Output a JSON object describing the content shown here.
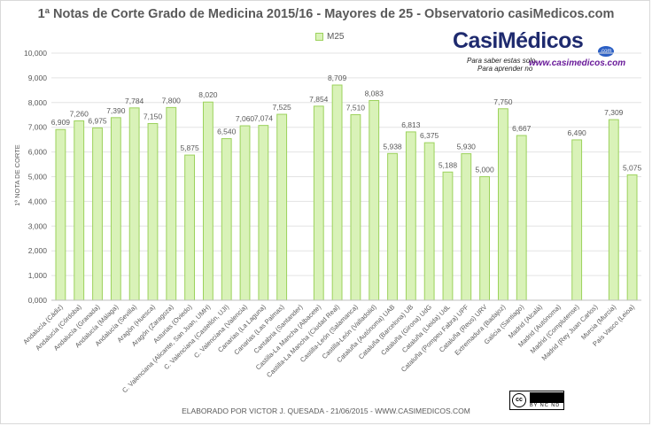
{
  "chart_data": {
    "type": "bar",
    "title": "1ª Notas de Corte Grado de Medicina 2015/16 - Mayores de 25 - Observatorio casiMedicos.com",
    "ylabel": "1ª NOTA DE CORTE",
    "xlabel": "",
    "ylim": [
      0,
      10
    ],
    "yticks": [
      "0,000",
      "1,000",
      "2,000",
      "3,000",
      "4,000",
      "5,000",
      "6,000",
      "7,000",
      "8,000",
      "9,000",
      "10,000"
    ],
    "grid": true,
    "legend_position": "top-center",
    "colors": {
      "bar_fill": "#d9f2b8",
      "bar_stroke": "#9cd25c",
      "grid": "#e3e3e3",
      "text": "#595959"
    },
    "categories": [
      "Andalucía (Cádiz)",
      "Andalucía (Córdoba)",
      "Andalucía (Granada)",
      "Andalucía (Málaga)",
      "Andalucía (Sevilla)",
      "Aragón (Huesca)",
      "Aragón (Zaragoza)",
      "Asturias (Oviedo)",
      "C. Valenciana (Alicante, San Juan, UMH)",
      "C. Valenciana (Castellón, UJI)",
      "C. Valenciana (Valencia)",
      "Canarias (La Laguna)",
      "Canarias (Las Palmas)",
      "Cantabria (Santander)",
      "Castilla-La Mancha (Albacete)",
      "Castilla-La Mancha (Ciudad Real)",
      "Castilla-León (Salamanca)",
      "Castilla-León (Valladolid)",
      "Cataluña (Autónoma) UAB",
      "Cataluña (Barcelona) UB",
      "Cataluña (Girona) UdG",
      "Cataluña (Lleida) UdL",
      "Cataluña (Pompeu Fabra) UPF",
      "Cataluña (Reus) URV",
      "Extremadura (Badajoz)",
      "Galicia (Santiago)",
      "Madrid (Alcalá)",
      "Madrid (Autónoma)",
      "Madrid (Complutense)",
      "Madrid (Rey Juan Carlos)",
      "Murcia (Murcia)",
      "País Vasco (Leioa)"
    ],
    "series": [
      {
        "name": "M25",
        "values": [
          6.909,
          7.26,
          6.975,
          7.39,
          7.784,
          7.15,
          7.8,
          5.875,
          8.02,
          6.54,
          7.06,
          7.074,
          7.525,
          null,
          7.854,
          8.709,
          7.51,
          8.083,
          5.938,
          6.813,
          6.375,
          5.188,
          5.93,
          5.0,
          7.75,
          6.667,
          null,
          null,
          6.49,
          null,
          7.309,
          5.075
        ],
        "labels": [
          "6,909",
          "7,260",
          "6,975",
          "7,390",
          "7,784",
          "7,150",
          "7,800",
          "5,875",
          "8,020",
          "6,540",
          "7,060",
          "7,074",
          "7,525",
          "",
          "7,854",
          "8,709",
          "7,510",
          "8,083",
          "5,938",
          "6,813",
          "6,375",
          "5,188",
          "5,930",
          "5,000",
          "7,750",
          "6,667",
          "",
          "",
          "6,490",
          "",
          "7,309",
          "5,075"
        ]
      }
    ]
  },
  "logo": {
    "brand": "CasiMédicos",
    "tagline_1": "Para saber estas solo.",
    "tagline_2": "Para aprender no",
    "url": "www.casimedicos.com",
    "dot_text": ".com"
  },
  "footer": {
    "credit": "ELABORADO POR VICTOR J. QUESADA - 21/06/2015 - WWW.CASIMEDICOS.COM",
    "license_terms": "BY NC ND",
    "license_symbol": "cc"
  }
}
